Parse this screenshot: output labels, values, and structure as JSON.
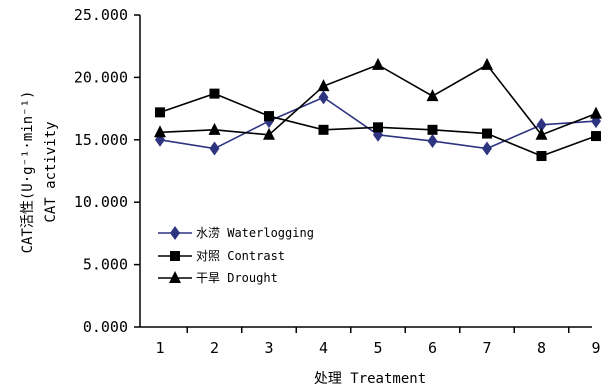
{
  "chart_data": {
    "type": "line",
    "xlabel": "处理 Treatment",
    "ylabel_line1": "CAT活性(U·g⁻¹·min⁻¹)",
    "ylabel_line2": "CAT activity",
    "x": [
      1,
      2,
      3,
      4,
      5,
      6,
      7,
      8,
      9
    ],
    "x_tick_labels": [
      "1",
      "2",
      "3",
      "4",
      "5",
      "6",
      "7",
      "8",
      "9"
    ],
    "y_ticks": [
      0,
      5,
      10,
      15,
      20,
      25
    ],
    "y_tick_labels": [
      "0.000",
      "5.000",
      "10.000",
      "15.000",
      "20.000",
      "25.000"
    ],
    "ylim": [
      0,
      25
    ],
    "grid": false,
    "legend_position": "middle-left",
    "series": [
      {
        "name": "水涝 Waterlogging",
        "color": "#2e3480",
        "marker": "diamond",
        "values": [
          15.0,
          14.3,
          16.5,
          18.4,
          15.4,
          14.9,
          14.3,
          16.2,
          16.5
        ]
      },
      {
        "name": "对照 Contrast",
        "color": "#000000",
        "marker": "square",
        "values": [
          17.2,
          18.7,
          16.9,
          15.8,
          16.0,
          15.8,
          15.5,
          13.7,
          15.3
        ]
      },
      {
        "name": "干旱 Drought",
        "color": "#000000",
        "marker": "triangle",
        "values": [
          15.6,
          15.8,
          15.4,
          19.3,
          21.0,
          18.5,
          21.0,
          15.4,
          17.1
        ]
      }
    ]
  }
}
